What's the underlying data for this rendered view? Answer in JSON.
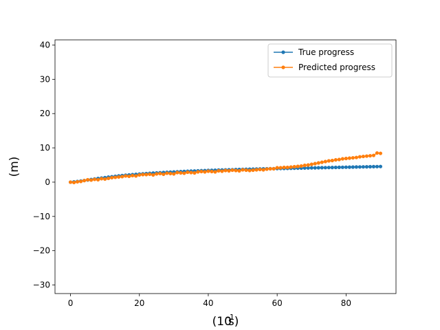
{
  "chart_data": {
    "type": "line",
    "title": "",
    "xlabel": "(10",
    "xlabel_superscript": "-1",
    "xlabel_suffix": "s)",
    "ylabel": "(m)",
    "xlim": [
      -4.5,
      94.5
    ],
    "ylim": [
      -32.5,
      41.5
    ],
    "xticks": [
      0,
      20,
      40,
      60,
      80
    ],
    "yticks": [
      -30,
      -20,
      -10,
      0,
      10,
      20,
      30,
      40
    ],
    "ytick_labels": [
      "−30",
      "−20",
      "−10",
      "0",
      "10",
      "20",
      "30",
      "40"
    ],
    "grid": false,
    "legend_position": "top-right",
    "x": [
      0,
      1,
      2,
      3,
      4,
      5,
      6,
      7,
      8,
      9,
      10,
      11,
      12,
      13,
      14,
      15,
      16,
      17,
      18,
      19,
      20,
      21,
      22,
      23,
      24,
      25,
      26,
      27,
      28,
      29,
      30,
      31,
      32,
      33,
      34,
      35,
      36,
      37,
      38,
      39,
      40,
      41,
      42,
      43,
      44,
      45,
      46,
      47,
      48,
      49,
      50,
      51,
      52,
      53,
      54,
      55,
      56,
      57,
      58,
      59,
      60,
      61,
      62,
      63,
      64,
      65,
      66,
      67,
      68,
      69,
      70,
      71,
      72,
      73,
      74,
      75,
      76,
      77,
      78,
      79,
      80,
      81,
      82,
      83,
      84,
      85,
      86,
      87,
      88,
      89,
      90
    ],
    "series": [
      {
        "name": "True progress",
        "color": "#1f77b4",
        "values": [
          0.0,
          0.08,
          0.2,
          0.33,
          0.48,
          0.63,
          0.78,
          0.92,
          1.06,
          1.2,
          1.33,
          1.46,
          1.58,
          1.7,
          1.81,
          1.92,
          2.02,
          2.11,
          2.2,
          2.28,
          2.36,
          2.43,
          2.5,
          2.57,
          2.64,
          2.7,
          2.76,
          2.82,
          2.88,
          2.93,
          2.98,
          3.03,
          3.08,
          3.13,
          3.17,
          3.22,
          3.26,
          3.3,
          3.34,
          3.38,
          3.42,
          3.45,
          3.49,
          3.52,
          3.55,
          3.58,
          3.61,
          3.64,
          3.67,
          3.7,
          3.73,
          3.76,
          3.78,
          3.81,
          3.83,
          3.86,
          3.88,
          3.9,
          3.92,
          3.94,
          3.96,
          3.98,
          4.0,
          4.02,
          4.04,
          4.06,
          4.08,
          4.1,
          4.12,
          4.14,
          4.16,
          4.18,
          4.2,
          4.22,
          4.24,
          4.26,
          4.28,
          4.3,
          4.32,
          4.34,
          4.36,
          4.38,
          4.4,
          4.42,
          4.44,
          4.46,
          4.48,
          4.5,
          4.52,
          4.54,
          4.56
        ]
      },
      {
        "name": "Predicted progress",
        "color": "#ff7f0e",
        "values": [
          0.0,
          -0.1,
          0.1,
          0.2,
          0.45,
          0.7,
          0.6,
          0.8,
          0.7,
          1.0,
          0.9,
          1.1,
          1.3,
          1.4,
          1.5,
          1.6,
          1.8,
          1.7,
          1.9,
          1.8,
          2.1,
          2.2,
          2.2,
          2.3,
          2.1,
          2.4,
          2.5,
          2.3,
          2.6,
          2.5,
          2.4,
          2.8,
          2.7,
          2.6,
          2.9,
          2.8,
          2.7,
          3.0,
          3.1,
          3.0,
          3.2,
          3.1,
          3.0,
          3.3,
          3.2,
          3.4,
          3.3,
          3.5,
          3.4,
          3.3,
          3.6,
          3.5,
          3.4,
          3.5,
          3.6,
          3.7,
          3.6,
          3.8,
          3.9,
          3.9,
          4.2,
          4.2,
          4.3,
          4.3,
          4.4,
          4.5,
          4.6,
          4.7,
          4.9,
          5.0,
          5.2,
          5.4,
          5.6,
          5.8,
          6.0,
          6.2,
          6.3,
          6.5,
          6.6,
          6.8,
          6.9,
          7.0,
          7.1,
          7.2,
          7.4,
          7.5,
          7.6,
          7.7,
          7.8,
          8.5,
          8.4
        ]
      }
    ]
  }
}
